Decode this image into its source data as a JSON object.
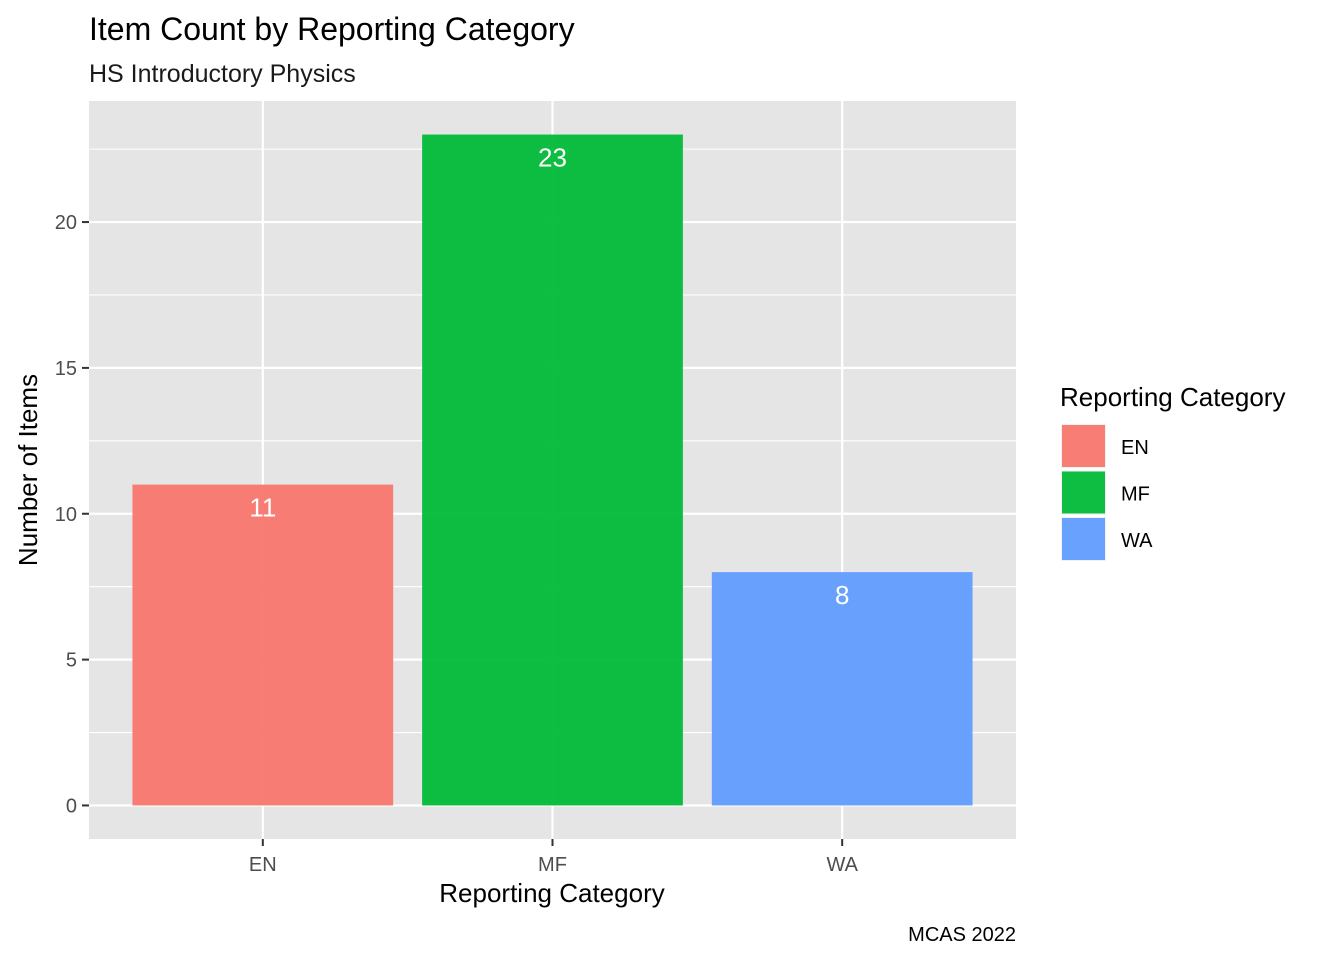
{
  "chart_data": {
    "type": "bar",
    "title": "Item Count by Reporting Category",
    "subtitle": "HS Introductory Physics",
    "xlabel": "Reporting Category",
    "ylabel": "Number of Items",
    "caption": "MCAS 2022",
    "categories": [
      "EN",
      "MF",
      "WA"
    ],
    "values": [
      11,
      23,
      8
    ],
    "colors": [
      "#F8766D",
      "#00BA38",
      "#619CFF"
    ],
    "ylim": [
      -1.15,
      24.15
    ],
    "yticks": [
      0,
      5,
      10,
      15,
      20
    ],
    "grid": true,
    "background": "#E5E5E5",
    "legend": {
      "title": "Reporting Category",
      "placement": "right",
      "entries": [
        "EN",
        "MF",
        "WA"
      ]
    }
  }
}
